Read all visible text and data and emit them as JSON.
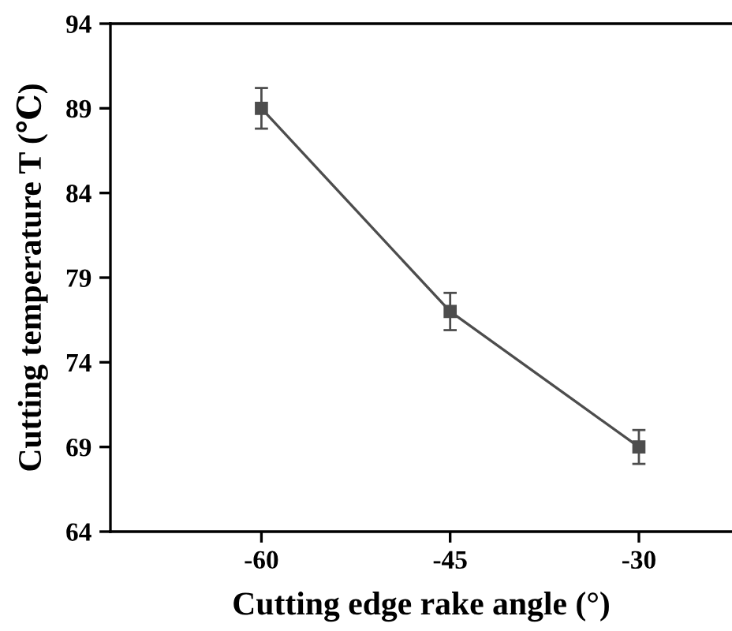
{
  "chart_data": {
    "type": "line",
    "xlabel": "Cutting edge rake angle (°)",
    "ylabel": "Cutting temperature T (℃)",
    "x": [
      -60,
      -45,
      -30
    ],
    "series": [
      {
        "color": "#4d4d4d",
        "values": [
          89.0,
          77.0,
          69.0
        ],
        "errors": [
          1.2,
          1.1,
          1.0
        ]
      }
    ],
    "xlim": [
      -72,
      -22.6
    ],
    "xticks": [
      -60,
      -45,
      -30
    ],
    "ylim": [
      64,
      94
    ],
    "yticks": [
      64,
      69,
      74,
      79,
      84,
      89,
      94
    ],
    "marker": "square",
    "line_style": "solid",
    "grid": false,
    "legend": false
  }
}
